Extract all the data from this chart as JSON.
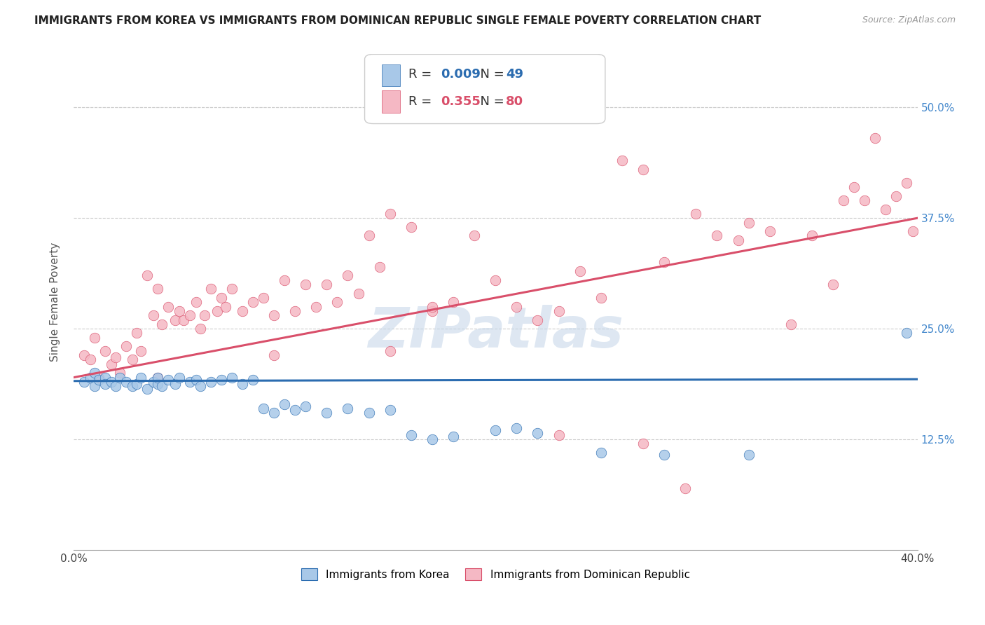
{
  "title": "IMMIGRANTS FROM KOREA VS IMMIGRANTS FROM DOMINICAN REPUBLIC SINGLE FEMALE POVERTY CORRELATION CHART",
  "source": "Source: ZipAtlas.com",
  "ylabel": "Single Female Poverty",
  "yticks": [
    "12.5%",
    "25.0%",
    "37.5%",
    "50.0%"
  ],
  "ytick_vals": [
    0.125,
    0.25,
    0.375,
    0.5
  ],
  "xlim": [
    0.0,
    0.4
  ],
  "ylim": [
    0.0,
    0.56
  ],
  "korea_R": "0.009",
  "korea_N": "49",
  "dom_R": "0.355",
  "dom_N": "80",
  "korea_color": "#A8C8E8",
  "dom_color": "#F5B8C4",
  "korea_line_color": "#2B6CB0",
  "dom_line_color": "#D94F6A",
  "watermark": "ZIPatlas",
  "watermark_color": "#C8D8EA",
  "korea_scatter_x": [
    0.005,
    0.008,
    0.01,
    0.01,
    0.012,
    0.015,
    0.015,
    0.018,
    0.02,
    0.022,
    0.025,
    0.028,
    0.03,
    0.032,
    0.035,
    0.038,
    0.04,
    0.04,
    0.042,
    0.045,
    0.048,
    0.05,
    0.055,
    0.058,
    0.06,
    0.065,
    0.07,
    0.075,
    0.08,
    0.085,
    0.09,
    0.095,
    0.1,
    0.105,
    0.11,
    0.12,
    0.13,
    0.14,
    0.15,
    0.16,
    0.17,
    0.18,
    0.2,
    0.21,
    0.22,
    0.25,
    0.28,
    0.32,
    0.395
  ],
  "korea_scatter_y": [
    0.19,
    0.195,
    0.185,
    0.2,
    0.192,
    0.195,
    0.188,
    0.19,
    0.185,
    0.195,
    0.19,
    0.185,
    0.188,
    0.195,
    0.182,
    0.19,
    0.188,
    0.195,
    0.185,
    0.192,
    0.188,
    0.195,
    0.19,
    0.192,
    0.185,
    0.19,
    0.192,
    0.195,
    0.188,
    0.192,
    0.16,
    0.155,
    0.165,
    0.158,
    0.162,
    0.155,
    0.16,
    0.155,
    0.158,
    0.13,
    0.125,
    0.128,
    0.135,
    0.138,
    0.132,
    0.11,
    0.108,
    0.108,
    0.245
  ],
  "dom_scatter_x": [
    0.005,
    0.008,
    0.01,
    0.012,
    0.015,
    0.018,
    0.02,
    0.022,
    0.025,
    0.028,
    0.03,
    0.032,
    0.035,
    0.038,
    0.04,
    0.042,
    0.045,
    0.048,
    0.05,
    0.052,
    0.055,
    0.058,
    0.06,
    0.062,
    0.065,
    0.068,
    0.07,
    0.072,
    0.075,
    0.08,
    0.085,
    0.09,
    0.095,
    0.1,
    0.105,
    0.11,
    0.115,
    0.12,
    0.125,
    0.13,
    0.135,
    0.14,
    0.145,
    0.15,
    0.16,
    0.17,
    0.18,
    0.19,
    0.2,
    0.21,
    0.22,
    0.23,
    0.24,
    0.25,
    0.26,
    0.27,
    0.28,
    0.295,
    0.305,
    0.315,
    0.32,
    0.33,
    0.34,
    0.35,
    0.36,
    0.365,
    0.37,
    0.375,
    0.38,
    0.385,
    0.39,
    0.395,
    0.398,
    0.17,
    0.23,
    0.27,
    0.29,
    0.15,
    0.095,
    0.04
  ],
  "dom_scatter_y": [
    0.22,
    0.215,
    0.24,
    0.195,
    0.225,
    0.21,
    0.218,
    0.2,
    0.23,
    0.215,
    0.245,
    0.225,
    0.31,
    0.265,
    0.295,
    0.255,
    0.275,
    0.26,
    0.27,
    0.26,
    0.265,
    0.28,
    0.25,
    0.265,
    0.295,
    0.27,
    0.285,
    0.275,
    0.295,
    0.27,
    0.28,
    0.285,
    0.265,
    0.305,
    0.27,
    0.3,
    0.275,
    0.3,
    0.28,
    0.31,
    0.29,
    0.355,
    0.32,
    0.38,
    0.365,
    0.27,
    0.28,
    0.355,
    0.305,
    0.275,
    0.26,
    0.13,
    0.315,
    0.285,
    0.44,
    0.43,
    0.325,
    0.38,
    0.355,
    0.35,
    0.37,
    0.36,
    0.255,
    0.355,
    0.3,
    0.395,
    0.41,
    0.395,
    0.465,
    0.385,
    0.4,
    0.415,
    0.36,
    0.275,
    0.27,
    0.12,
    0.07,
    0.225,
    0.22,
    0.195
  ]
}
